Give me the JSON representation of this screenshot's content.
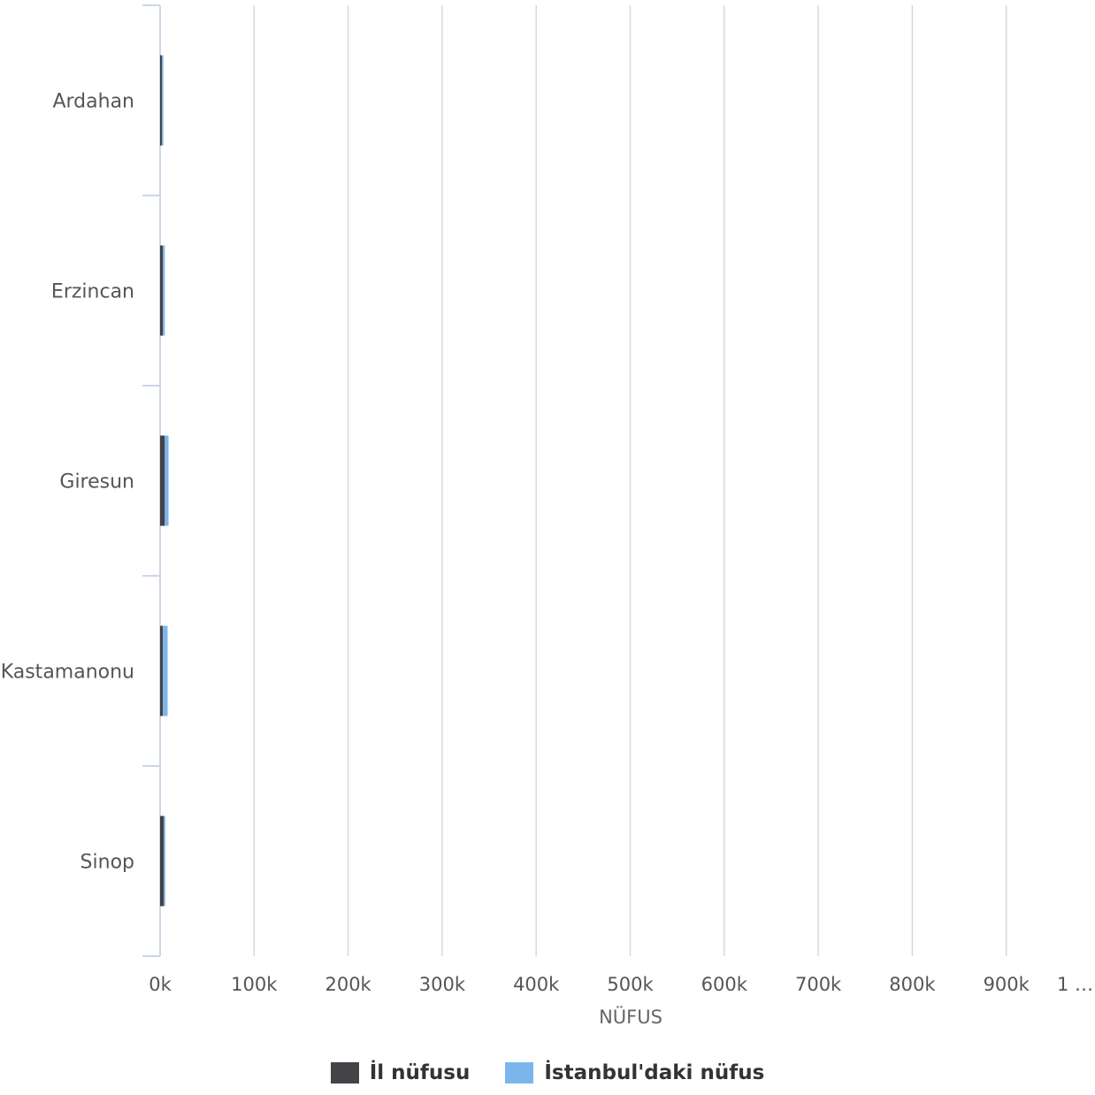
{
  "chart_data": {
    "type": "bar",
    "orientation": "horizontal",
    "categories": [
      "Ardahan",
      "Erzincan",
      "Giresun",
      "Kastamanonu",
      "Sinop"
    ],
    "series": [
      {
        "name": "İl nüfusu",
        "color": "#434348",
        "values": [
          2000,
          3000,
          5000,
          3000,
          4000
        ]
      },
      {
        "name": "İstanbul'daki nüfus",
        "color": "#7cb5ec",
        "values": [
          1000,
          2000,
          4000,
          5000,
          1000
        ]
      }
    ],
    "stacked": true,
    "xlabel": "NÜFUS",
    "ylabel": "",
    "xlim": [
      0,
      1000000
    ],
    "xticks": [
      "0k",
      "100k",
      "200k",
      "300k",
      "400k",
      "500k",
      "600k",
      "700k",
      "800k",
      "900k",
      "1 …"
    ],
    "grid": true,
    "legend_position": "bottom"
  }
}
